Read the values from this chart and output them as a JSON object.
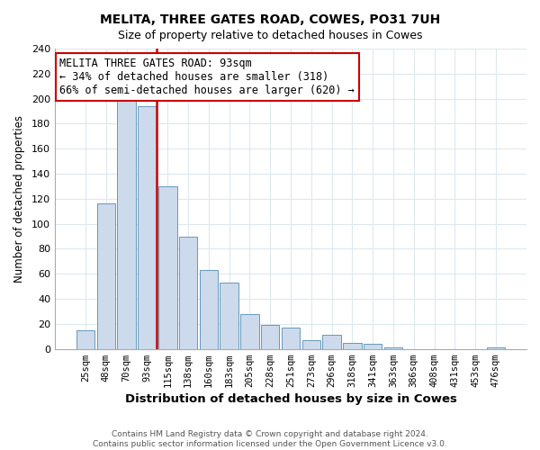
{
  "title": "MELITA, THREE GATES ROAD, COWES, PO31 7UH",
  "subtitle": "Size of property relative to detached houses in Cowes",
  "xlabel": "Distribution of detached houses by size in Cowes",
  "ylabel": "Number of detached properties",
  "bar_labels": [
    "25sqm",
    "48sqm",
    "70sqm",
    "93sqm",
    "115sqm",
    "138sqm",
    "160sqm",
    "183sqm",
    "205sqm",
    "228sqm",
    "251sqm",
    "273sqm",
    "296sqm",
    "318sqm",
    "341sqm",
    "363sqm",
    "386sqm",
    "408sqm",
    "431sqm",
    "453sqm",
    "476sqm"
  ],
  "bar_values": [
    15,
    116,
    199,
    194,
    130,
    90,
    63,
    53,
    28,
    19,
    17,
    7,
    11,
    5,
    4,
    1,
    0,
    0,
    0,
    0,
    1
  ],
  "bar_color": "#ccdaeb",
  "bar_edge_color": "#6699bb",
  "vline_index": 3,
  "vline_color": "#cc0000",
  "annotation_text": "MELITA THREE GATES ROAD: 93sqm\n← 34% of detached houses are smaller (318)\n66% of semi-detached houses are larger (620) →",
  "annotation_box_edge": "#cc0000",
  "ylim": [
    0,
    240
  ],
  "yticks": [
    0,
    20,
    40,
    60,
    80,
    100,
    120,
    140,
    160,
    180,
    200,
    220,
    240
  ],
  "footer1": "Contains HM Land Registry data © Crown copyright and database right 2024.",
  "footer2": "Contains public sector information licensed under the Open Government Licence v3.0.",
  "bg_color": "#ffffff",
  "plot_bg_color": "#ffffff",
  "grid_color": "#dde8f0"
}
